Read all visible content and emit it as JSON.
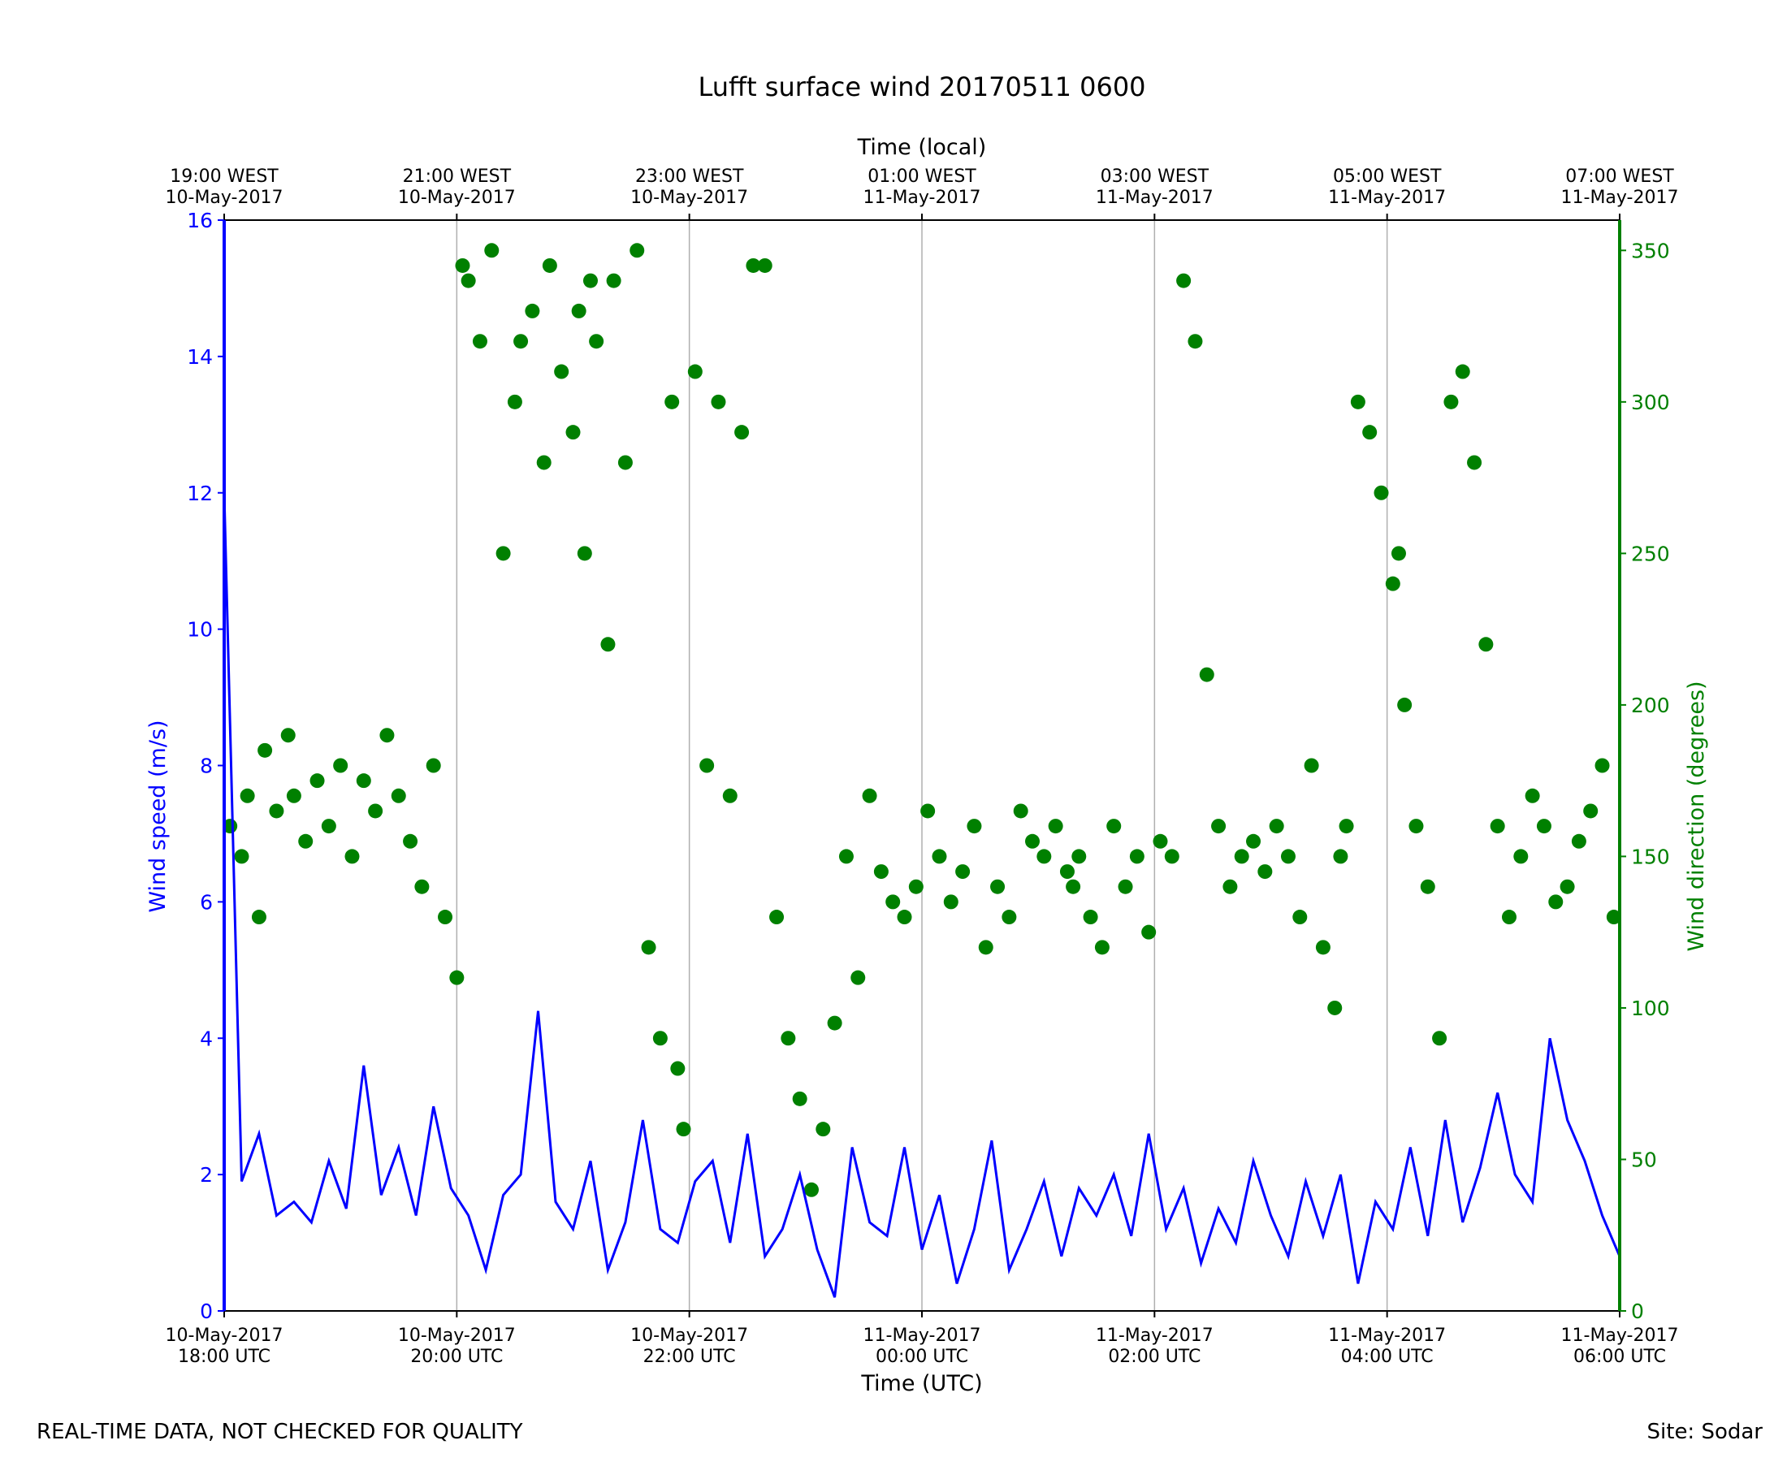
{
  "chart_data": {
    "type": "line+scatter",
    "title": "Lufft surface wind 20170511 0600",
    "xlabel_bottom": "Time (UTC)",
    "xlabel_top": "Time (local)",
    "ylabel_left": "Wind speed (m/s)",
    "ylabel_right": "Wind direction (degrees)",
    "xlim_hours": [
      0,
      12
    ],
    "ylim_left": [
      0,
      16
    ],
    "ylim_right": [
      0,
      360
    ],
    "grid": "vertical lines at x ticks",
    "bottom_ticks": [
      {
        "h": 0,
        "l1": "10-May-2017",
        "l2": "18:00 UTC"
      },
      {
        "h": 2,
        "l1": "10-May-2017",
        "l2": "20:00 UTC"
      },
      {
        "h": 4,
        "l1": "10-May-2017",
        "l2": "22:00 UTC"
      },
      {
        "h": 6,
        "l1": "11-May-2017",
        "l2": "00:00 UTC"
      },
      {
        "h": 8,
        "l1": "11-May-2017",
        "l2": "02:00 UTC"
      },
      {
        "h": 10,
        "l1": "11-May-2017",
        "l2": "04:00 UTC"
      },
      {
        "h": 12,
        "l1": "11-May-2017",
        "l2": "06:00 UTC"
      }
    ],
    "top_ticks": [
      {
        "h": 0,
        "l1": "19:00 WEST",
        "l2": "10-May-2017"
      },
      {
        "h": 2,
        "l1": "21:00 WEST",
        "l2": "10-May-2017"
      },
      {
        "h": 4,
        "l1": "23:00 WEST",
        "l2": "10-May-2017"
      },
      {
        "h": 6,
        "l1": "01:00 WEST",
        "l2": "11-May-2017"
      },
      {
        "h": 8,
        "l1": "03:00 WEST",
        "l2": "11-May-2017"
      },
      {
        "h": 10,
        "l1": "05:00 WEST",
        "l2": "11-May-2017"
      },
      {
        "h": 12,
        "l1": "07:00 WEST",
        "l2": "11-May-2017"
      }
    ],
    "left_ticks": [
      "0",
      "2",
      "4",
      "6",
      "8",
      "10",
      "12",
      "14",
      "16"
    ],
    "right_ticks": [
      "0",
      "50",
      "100",
      "150",
      "200",
      "250",
      "300",
      "350"
    ],
    "colors": {
      "speed": "#0000ff",
      "direction": "#008000",
      "grid": "#b0b0b0"
    },
    "series": [
      {
        "kind": "wind_speed_line",
        "x_hours": [
          0,
          0.15,
          0.3,
          0.45,
          0.6,
          0.75,
          0.9,
          1.05,
          1.2,
          1.35,
          1.5,
          1.65,
          1.8,
          1.95,
          2.1,
          2.25,
          2.4,
          2.55,
          2.7,
          2.85,
          3.0,
          3.15,
          3.3,
          3.45,
          3.6,
          3.75,
          3.9,
          4.05,
          4.2,
          4.35,
          4.5,
          4.65,
          4.8,
          4.95,
          5.1,
          5.25,
          5.4,
          5.55,
          5.7,
          5.85,
          6.0,
          6.15,
          6.3,
          6.45,
          6.6,
          6.75,
          6.9,
          7.05,
          7.2,
          7.35,
          7.5,
          7.65,
          7.8,
          7.95,
          8.1,
          8.25,
          8.4,
          8.55,
          8.7,
          8.85,
          9.0,
          9.15,
          9.3,
          9.45,
          9.6,
          9.75,
          9.9,
          10.05,
          10.2,
          10.35,
          10.5,
          10.65,
          10.8,
          10.95,
          11.1,
          11.25,
          11.4,
          11.55,
          11.7,
          11.85,
          12.0
        ],
        "y": [
          12.0,
          1.9,
          2.6,
          1.4,
          1.6,
          1.3,
          2.2,
          1.5,
          3.6,
          1.7,
          2.4,
          1.4,
          3.0,
          1.8,
          1.4,
          0.6,
          1.7,
          2.0,
          4.4,
          1.6,
          1.2,
          2.2,
          0.6,
          1.3,
          2.8,
          1.2,
          1.0,
          1.9,
          2.2,
          1.0,
          2.6,
          0.8,
          1.2,
          2.0,
          0.9,
          0.2,
          2.4,
          1.3,
          1.1,
          2.4,
          0.9,
          1.7,
          0.4,
          1.2,
          2.5,
          0.6,
          1.2,
          1.9,
          0.8,
          1.8,
          1.4,
          2.0,
          1.1,
          2.6,
          1.2,
          1.8,
          0.7,
          1.5,
          1.0,
          2.2,
          1.4,
          0.8,
          1.9,
          1.1,
          2.0,
          0.4,
          1.6,
          1.2,
          2.4,
          1.1,
          2.8,
          1.3,
          2.1,
          3.2,
          2.0,
          1.6,
          4.0,
          2.8,
          2.2,
          1.4,
          0.8
        ]
      },
      {
        "kind": "wind_direction_points",
        "x_hours": [
          0.05,
          0.15,
          0.2,
          0.3,
          0.35,
          0.45,
          0.55,
          0.6,
          0.7,
          0.8,
          0.9,
          1.0,
          1.1,
          1.2,
          1.3,
          1.4,
          1.5,
          1.6,
          1.7,
          1.8,
          1.9,
          2.0,
          2.05,
          2.1,
          2.2,
          2.3,
          2.4,
          2.5,
          2.55,
          2.65,
          2.75,
          2.8,
          2.9,
          3.0,
          3.05,
          3.1,
          3.15,
          3.2,
          3.3,
          3.35,
          3.45,
          3.55,
          3.65,
          3.75,
          3.85,
          3.9,
          3.95,
          4.05,
          4.15,
          4.25,
          4.35,
          4.45,
          4.55,
          4.65,
          4.75,
          4.85,
          4.95,
          5.05,
          5.15,
          5.25,
          5.35,
          5.45,
          5.55,
          5.65,
          5.75,
          5.85,
          5.95,
          6.05,
          6.15,
          6.25,
          6.35,
          6.45,
          6.55,
          6.65,
          6.75,
          6.85,
          6.95,
          7.05,
          7.15,
          7.25,
          7.3,
          7.35,
          7.45,
          7.55,
          7.65,
          7.75,
          7.85,
          7.95,
          8.05,
          8.15,
          8.25,
          8.35,
          8.45,
          8.55,
          8.65,
          8.75,
          8.85,
          8.95,
          9.05,
          9.15,
          9.25,
          9.35,
          9.45,
          9.55,
          9.6,
          9.65,
          9.75,
          9.85,
          9.95,
          10.05,
          10.1,
          10.15,
          10.25,
          10.35,
          10.45,
          10.55,
          10.65,
          10.75,
          10.85,
          10.95,
          11.05,
          11.15,
          11.25,
          11.35,
          11.45,
          11.55,
          11.65,
          11.75,
          11.85,
          11.95
        ],
        "y": [
          160,
          150,
          170,
          130,
          185,
          165,
          190,
          170,
          155,
          175,
          160,
          180,
          150,
          175,
          165,
          190,
          170,
          155,
          140,
          180,
          130,
          110,
          345,
          340,
          320,
          350,
          250,
          300,
          320,
          330,
          280,
          345,
          310,
          290,
          330,
          250,
          340,
          320,
          220,
          340,
          280,
          350,
          120,
          90,
          300,
          80,
          60,
          310,
          180,
          300,
          170,
          290,
          345,
          345,
          130,
          90,
          70,
          40,
          60,
          95,
          150,
          110,
          170,
          145,
          135,
          130,
          140,
          165,
          150,
          135,
          145,
          160,
          120,
          140,
          130,
          165,
          155,
          150,
          160,
          145,
          140,
          150,
          130,
          120,
          160,
          140,
          150,
          125,
          155,
          150,
          340,
          320,
          210,
          160,
          140,
          150,
          155,
          145,
          160,
          150,
          130,
          180,
          120,
          100,
          150,
          160,
          300,
          290,
          270,
          240,
          250,
          200,
          160,
          140,
          90,
          300,
          310,
          280,
          220,
          160,
          130,
          150,
          170,
          160,
          135,
          140,
          155,
          165,
          180,
          130
        ],
        "marker": "circle"
      }
    ]
  },
  "footer": {
    "left": "REAL-TIME DATA, NOT CHECKED FOR QUALITY",
    "right": "Site: Sodar"
  }
}
